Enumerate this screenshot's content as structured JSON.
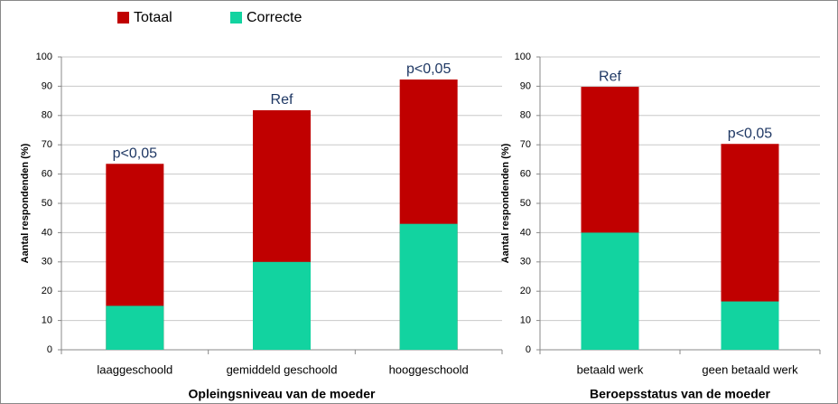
{
  "chart_data": [
    {
      "type": "bar",
      "xlabel": "Opleingsniveau van de moeder",
      "ylabel": "Aantal respondenden (%)",
      "categories": [
        "laaggeschoold",
        "gemiddeld geschoold",
        "hooggeschoold"
      ],
      "series": [
        {
          "name": "Totaal",
          "color": "#c00000",
          "values": [
            63.5,
            81.8,
            92.3
          ]
        },
        {
          "name": "Correcte",
          "color": "#12d3a0",
          "values": [
            15,
            30,
            43
          ]
        }
      ],
      "annotations": [
        "p<0,05",
        "Ref",
        "p<0,05"
      ],
      "ylim": [
        0,
        100
      ],
      "yticks": [
        0,
        10,
        20,
        30,
        40,
        50,
        60,
        70,
        80,
        90,
        100
      ],
      "grid": true
    },
    {
      "type": "bar",
      "xlabel": "Beroepsstatus van de moeder",
      "ylabel": "Aantal respondenden (%)",
      "categories": [
        "betaald werk",
        "geen betaald werk"
      ],
      "series": [
        {
          "color": "#c00000",
          "values": [
            89.8,
            70.3
          ]
        },
        {
          "color": "#12d3a0",
          "values": [
            40,
            16.5
          ]
        }
      ],
      "annotations": [
        "Ref",
        "p<0,05"
      ],
      "ylim": [
        0,
        100
      ],
      "yticks": [
        0,
        10,
        20,
        30,
        40,
        50,
        60,
        70,
        80,
        90,
        100
      ],
      "grid": true
    }
  ]
}
